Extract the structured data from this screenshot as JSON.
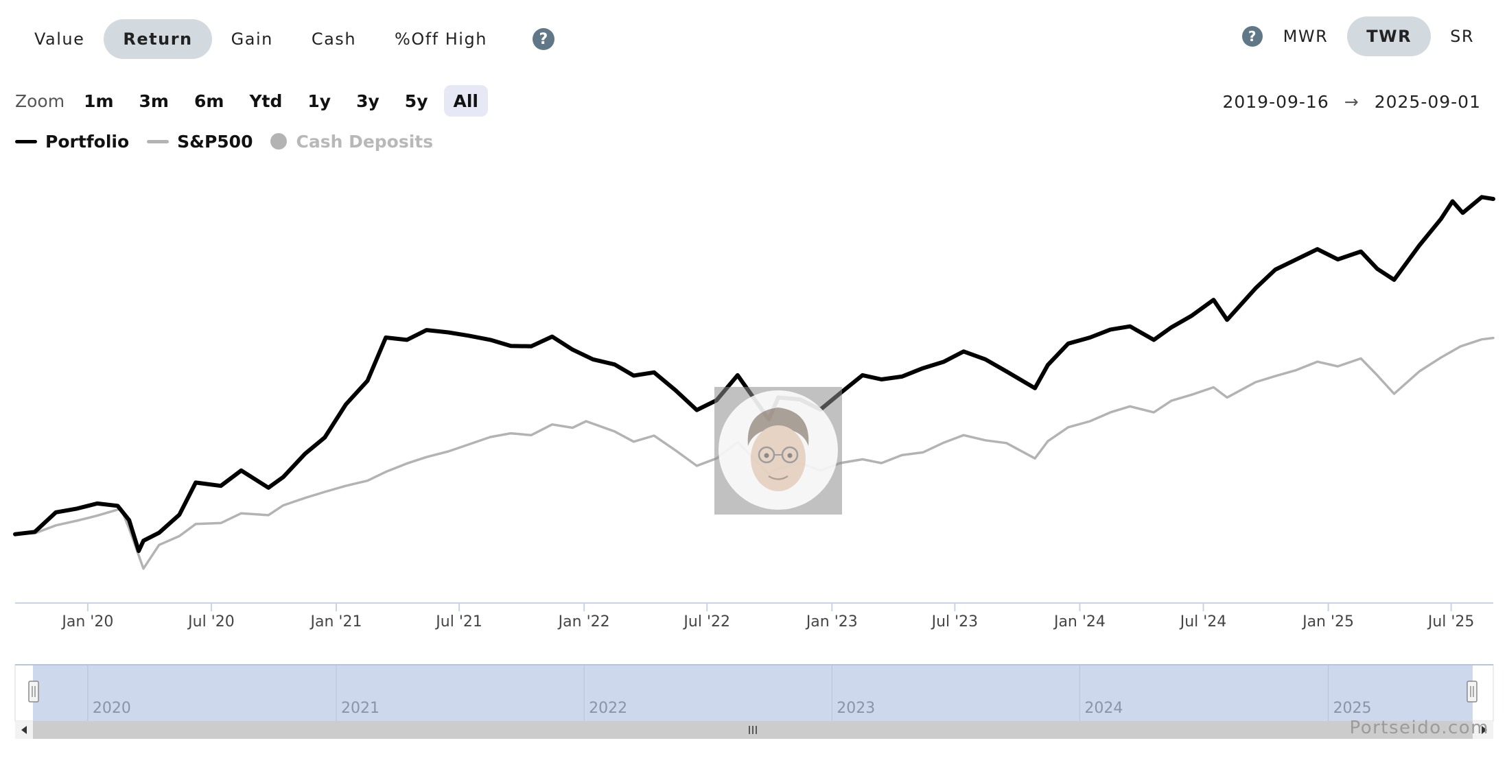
{
  "metric_tabs": [
    {
      "label": "Value",
      "active": false
    },
    {
      "label": "Return",
      "active": true
    },
    {
      "label": "Gain",
      "active": false
    },
    {
      "label": "Cash",
      "active": false
    },
    {
      "label": "%Off High",
      "active": false
    }
  ],
  "help_glyph": "?",
  "mode_tabs": [
    {
      "label": "MWR",
      "active": false
    },
    {
      "label": "TWR",
      "active": true
    },
    {
      "label": "SR",
      "active": false
    }
  ],
  "zoom": {
    "label": "Zoom",
    "buttons": [
      "1m",
      "3m",
      "6m",
      "Ytd",
      "1y",
      "3y",
      "5y",
      "All"
    ],
    "active": "All"
  },
  "date_range": {
    "start": "2019-09-16",
    "arrow": "→",
    "end": "2025-09-01"
  },
  "legend": [
    {
      "label": "Portfolio",
      "color": "#000000",
      "kind": "line",
      "enabled": true
    },
    {
      "label": "S&P500",
      "color": "#b3b3b3",
      "kind": "line",
      "enabled": true
    },
    {
      "label": "Cash Deposits",
      "color": "#b3b3b3",
      "kind": "dot",
      "enabled": false
    }
  ],
  "watermark": "Portseido.com",
  "chart_data": {
    "type": "line",
    "title": "",
    "xlabel": "",
    "ylabel": "",
    "x_ticks": [
      "Jan '20",
      "Jul '20",
      "Jan '21",
      "Jul '21",
      "Jan '22",
      "Jul '22",
      "Jan '23",
      "Jul '23",
      "Jan '24",
      "Jul '24",
      "Jan '25",
      "Jul '25"
    ],
    "x_range": [
      "2019-09-16",
      "2025-09-01"
    ],
    "y_axis_visible": false,
    "grid": false,
    "legend_position": "top-left",
    "series": [
      {
        "name": "Portfolio",
        "color": "#000000",
        "points": [
          [
            "2019-09-16",
            0
          ],
          [
            "2019-10-15",
            0.5
          ],
          [
            "2019-11-15",
            4.7
          ],
          [
            "2019-12-16",
            5.5
          ],
          [
            "2020-01-15",
            6.6
          ],
          [
            "2020-02-14",
            6.1
          ],
          [
            "2020-03-02",
            3.0
          ],
          [
            "2020-03-16",
            -3.6
          ],
          [
            "2020-03-23",
            -1.4
          ],
          [
            "2020-04-15",
            0.3
          ],
          [
            "2020-05-15",
            4.2
          ],
          [
            "2020-06-08",
            11.1
          ],
          [
            "2020-07-15",
            10.4
          ],
          [
            "2020-08-14",
            13.7
          ],
          [
            "2020-09-23",
            10.0
          ],
          [
            "2020-10-15",
            12.3
          ],
          [
            "2020-11-16",
            17.3
          ],
          [
            "2020-12-15",
            20.8
          ],
          [
            "2021-01-15",
            27.9
          ],
          [
            "2021-02-16",
            33.0
          ],
          [
            "2021-03-15",
            42.3
          ],
          [
            "2021-04-15",
            41.8
          ],
          [
            "2021-05-14",
            43.9
          ],
          [
            "2021-06-15",
            43.4
          ],
          [
            "2021-07-15",
            42.7
          ],
          [
            "2021-08-16",
            41.8
          ],
          [
            "2021-09-15",
            40.5
          ],
          [
            "2021-10-15",
            40.4
          ],
          [
            "2021-11-15",
            42.5
          ],
          [
            "2021-12-15",
            39.7
          ],
          [
            "2022-01-14",
            37.6
          ],
          [
            "2022-02-15",
            36.5
          ],
          [
            "2022-03-15",
            34.1
          ],
          [
            "2022-04-14",
            34.8
          ],
          [
            "2022-05-16",
            30.9
          ],
          [
            "2022-06-16",
            26.7
          ],
          [
            "2022-07-15",
            28.8
          ],
          [
            "2022-08-15",
            34.2
          ],
          [
            "2022-09-30",
            24.7
          ],
          [
            "2022-10-14",
            29.4
          ],
          [
            "2022-11-15",
            29.0
          ],
          [
            "2022-12-15",
            26.8
          ],
          [
            "2023-01-13",
            30.3
          ],
          [
            "2023-02-15",
            34.2
          ],
          [
            "2023-03-15",
            33.3
          ],
          [
            "2023-04-14",
            33.9
          ],
          [
            "2023-05-15",
            35.7
          ],
          [
            "2023-06-15",
            37.1
          ],
          [
            "2023-07-14",
            39.3
          ],
          [
            "2023-08-15",
            37.6
          ],
          [
            "2023-09-15",
            35.0
          ],
          [
            "2023-10-27",
            31.4
          ],
          [
            "2023-11-15",
            36.4
          ],
          [
            "2023-12-15",
            41.0
          ],
          [
            "2024-01-16",
            42.3
          ],
          [
            "2024-02-15",
            44.0
          ],
          [
            "2024-03-15",
            44.7
          ],
          [
            "2024-04-19",
            41.8
          ],
          [
            "2024-05-15",
            44.5
          ],
          [
            "2024-06-14",
            47.0
          ],
          [
            "2024-07-16",
            50.4
          ],
          [
            "2024-08-05",
            46.1
          ],
          [
            "2024-09-16",
            52.9
          ],
          [
            "2024-10-15",
            56.9
          ],
          [
            "2024-11-15",
            59.1
          ],
          [
            "2024-12-16",
            61.3
          ],
          [
            "2025-01-15",
            59.1
          ],
          [
            "2025-02-18",
            60.8
          ],
          [
            "2025-03-14",
            57.1
          ],
          [
            "2025-04-08",
            54.7
          ],
          [
            "2025-05-15",
            62.1
          ],
          [
            "2025-06-16",
            67.8
          ],
          [
            "2025-07-03",
            71.6
          ],
          [
            "2025-07-18",
            69.1
          ],
          [
            "2025-08-15",
            72.5
          ],
          [
            "2025-09-01",
            72.1
          ]
        ]
      },
      {
        "name": "S&P500",
        "color": "#b3b3b3",
        "points": [
          [
            "2019-09-16",
            0
          ],
          [
            "2019-10-15",
            0.2
          ],
          [
            "2019-11-15",
            1.9
          ],
          [
            "2019-12-16",
            2.9
          ],
          [
            "2020-01-15",
            4.0
          ],
          [
            "2020-02-19",
            5.5
          ],
          [
            "2020-03-02",
            1.2
          ],
          [
            "2020-03-23",
            -7.4
          ],
          [
            "2020-04-15",
            -2.3
          ],
          [
            "2020-05-15",
            -0.4
          ],
          [
            "2020-06-08",
            2.2
          ],
          [
            "2020-07-15",
            2.4
          ],
          [
            "2020-08-14",
            4.5
          ],
          [
            "2020-09-23",
            4.1
          ],
          [
            "2020-10-15",
            6.2
          ],
          [
            "2020-11-16",
            7.8
          ],
          [
            "2020-12-15",
            9.1
          ],
          [
            "2021-01-15",
            10.4
          ],
          [
            "2021-02-16",
            11.5
          ],
          [
            "2021-03-15",
            13.4
          ],
          [
            "2021-04-15",
            15.2
          ],
          [
            "2021-05-14",
            16.6
          ],
          [
            "2021-06-15",
            17.8
          ],
          [
            "2021-07-15",
            19.3
          ],
          [
            "2021-08-16",
            20.9
          ],
          [
            "2021-09-15",
            21.7
          ],
          [
            "2021-10-15",
            21.3
          ],
          [
            "2021-11-15",
            23.6
          ],
          [
            "2021-12-15",
            22.9
          ],
          [
            "2022-01-04",
            24.3
          ],
          [
            "2022-02-15",
            22.1
          ],
          [
            "2022-03-15",
            19.9
          ],
          [
            "2022-04-14",
            21.2
          ],
          [
            "2022-05-16",
            18.0
          ],
          [
            "2022-06-16",
            14.7
          ],
          [
            "2022-07-15",
            16.3
          ],
          [
            "2022-08-15",
            19.8
          ],
          [
            "2022-09-30",
            12.9
          ],
          [
            "2022-10-14",
            14.1
          ],
          [
            "2022-11-15",
            15.3
          ],
          [
            "2022-12-15",
            13.7
          ],
          [
            "2023-01-13",
            15.3
          ],
          [
            "2023-02-15",
            16.1
          ],
          [
            "2023-03-15",
            15.3
          ],
          [
            "2023-04-14",
            17.0
          ],
          [
            "2023-05-15",
            17.6
          ],
          [
            "2023-06-15",
            19.7
          ],
          [
            "2023-07-14",
            21.3
          ],
          [
            "2023-08-15",
            20.2
          ],
          [
            "2023-09-15",
            19.6
          ],
          [
            "2023-10-27",
            16.3
          ],
          [
            "2023-11-15",
            20.0
          ],
          [
            "2023-12-15",
            23.0
          ],
          [
            "2024-01-16",
            24.3
          ],
          [
            "2024-02-15",
            26.2
          ],
          [
            "2024-03-15",
            27.5
          ],
          [
            "2024-04-19",
            26.2
          ],
          [
            "2024-05-15",
            28.7
          ],
          [
            "2024-06-14",
            30.0
          ],
          [
            "2024-07-16",
            31.6
          ],
          [
            "2024-08-05",
            29.4
          ],
          [
            "2024-09-16",
            32.7
          ],
          [
            "2024-10-15",
            34.0
          ],
          [
            "2024-11-15",
            35.3
          ],
          [
            "2024-12-16",
            37.1
          ],
          [
            "2025-01-15",
            36.1
          ],
          [
            "2025-02-18",
            37.8
          ],
          [
            "2025-03-14",
            34.2
          ],
          [
            "2025-04-08",
            30.2
          ],
          [
            "2025-05-15",
            35.0
          ],
          [
            "2025-06-16",
            38.0
          ],
          [
            "2025-07-15",
            40.4
          ],
          [
            "2025-08-15",
            41.9
          ],
          [
            "2025-09-01",
            42.2
          ]
        ]
      }
    ],
    "navigator": {
      "year_labels": [
        "2020",
        "2021",
        "2022",
        "2023",
        "2024",
        "2025"
      ]
    }
  }
}
